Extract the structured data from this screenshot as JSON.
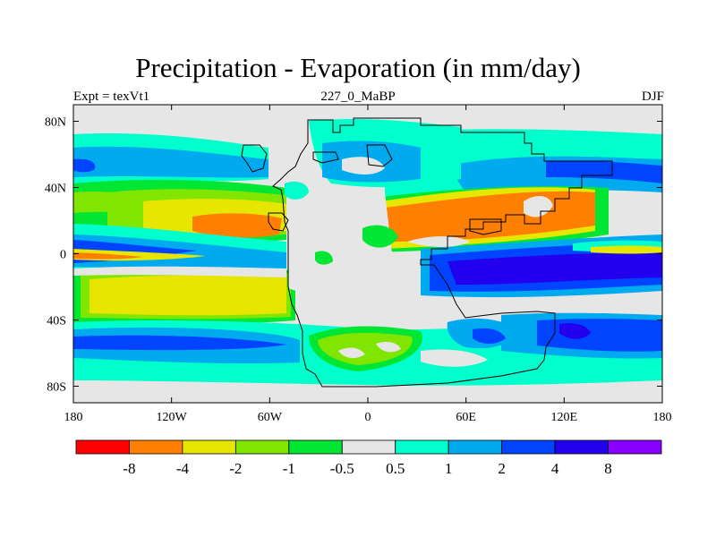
{
  "title": "Precipitation - Evaporation (in mm/day)",
  "expt_label": "Expt = texVt1",
  "run_label": "227_0_MaBP",
  "season_label": "DJF",
  "chart_data": {
    "type": "heatmap",
    "title": "Precipitation - Evaporation (in mm/day)",
    "x_ticks": [
      "180",
      "120W",
      "60W",
      "0",
      "60E",
      "120E",
      "180"
    ],
    "x_range": [
      -180,
      180
    ],
    "y_ticks": [
      "80N",
      "40N",
      "0",
      "40S",
      "80S"
    ],
    "y_range": [
      -90,
      90
    ],
    "color_levels": [
      "-8",
      "-4",
      "-2",
      "-1",
      "-0.5",
      "0.5",
      "1",
      "2",
      "4",
      "8"
    ],
    "colors": [
      "#ff0000",
      "#ff7f00",
      "#e6e600",
      "#80e600",
      "#00e633",
      "#e6e6e6",
      "#00ffcc",
      "#00aaee",
      "#0044ff",
      "#2200ee",
      "#8800ff"
    ],
    "background": "#e6e6e6"
  }
}
